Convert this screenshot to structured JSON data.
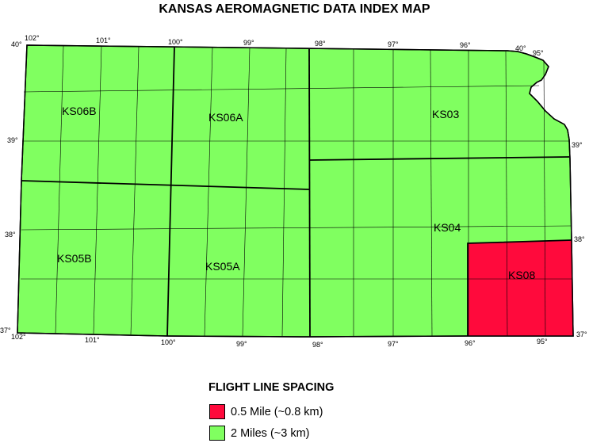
{
  "title": "KANSAS AEROMAGNETIC DATA INDEX MAP",
  "colors": {
    "two_mile": "#80ff60",
    "half_mile": "#ff0a3c",
    "outline": "#000000"
  },
  "top_lon_labels": [
    "102°",
    "101°",
    "100°",
    "99°",
    "98°",
    "97°",
    "96°",
    "40°",
    "95°"
  ],
  "bottom_lon_labels": [
    "102°",
    "101°",
    "100°",
    "99°",
    "98°",
    "97°",
    "96°",
    "95°"
  ],
  "left_lat_labels": [
    "40°",
    "39°",
    "38°",
    "37°"
  ],
  "right_lat_labels": [
    "39°",
    "38°",
    "37°"
  ],
  "zones": {
    "ks06b": {
      "label": "KS06B",
      "spacing": "2 Miles"
    },
    "ks06a": {
      "label": "KS06A",
      "spacing": "2 Miles"
    },
    "ks03": {
      "label": "KS03",
      "spacing": "2 Miles"
    },
    "ks05b": {
      "label": "KS05B",
      "spacing": "2 Miles"
    },
    "ks05a": {
      "label": "KS05A",
      "spacing": "2 Miles"
    },
    "ks04": {
      "label": "KS04",
      "spacing": "2 Miles"
    },
    "ks08": {
      "label": "KS08",
      "spacing": "0.5 Mile"
    }
  },
  "legend": {
    "title": "FLIGHT LINE SPACING",
    "items": [
      {
        "label": "0.5 Mile (~0.8 km)",
        "color": "#ff0a3c"
      },
      {
        "label": "2 Miles (~3 km)",
        "color": "#80ff60"
      }
    ]
  }
}
